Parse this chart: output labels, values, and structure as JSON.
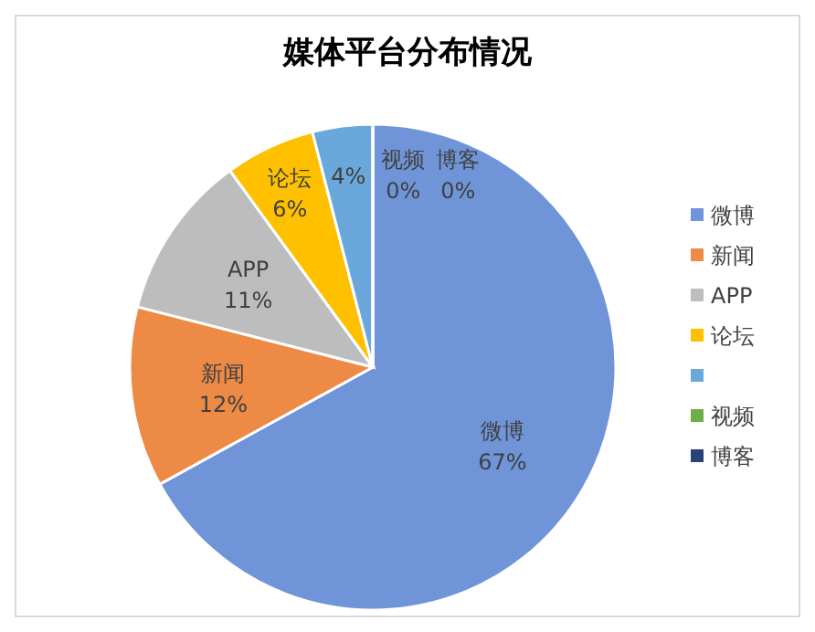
{
  "chart_data": {
    "type": "pie",
    "title": "媒体平台分布情况",
    "categories": [
      "微博",
      "新闻",
      "APP",
      "论坛",
      null,
      "视频",
      "博客"
    ],
    "values": [
      67,
      12,
      11,
      6,
      4,
      0,
      0
    ],
    "value_labels": [
      "67%",
      "12%",
      "11%",
      "6%",
      "4%",
      "0%",
      "0%"
    ],
    "colors": [
      "#6f95d8",
      "#ed8a45",
      "#bdbdbd",
      "#ffc000",
      "#6aa8dc",
      "#70ad47",
      "#264478"
    ],
    "legend": "right"
  }
}
